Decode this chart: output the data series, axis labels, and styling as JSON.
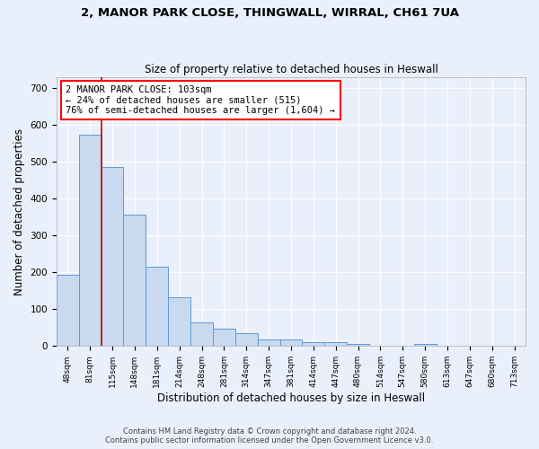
{
  "title_line1": "2, MANOR PARK CLOSE, THINGWALL, WIRRAL, CH61 7UA",
  "title_line2": "Size of property relative to detached houses in Heswall",
  "xlabel": "Distribution of detached houses by size in Heswall",
  "ylabel": "Number of detached properties",
  "categories": [
    "48sqm",
    "81sqm",
    "115sqm",
    "148sqm",
    "181sqm",
    "214sqm",
    "248sqm",
    "281sqm",
    "314sqm",
    "347sqm",
    "381sqm",
    "414sqm",
    "447sqm",
    "480sqm",
    "514sqm",
    "547sqm",
    "580sqm",
    "613sqm",
    "647sqm",
    "680sqm",
    "713sqm"
  ],
  "values": [
    193,
    575,
    487,
    357,
    216,
    133,
    65,
    48,
    36,
    18,
    18,
    11,
    10,
    6,
    0,
    0,
    6,
    0,
    0,
    0,
    0
  ],
  "bar_color": "#c9d9f0",
  "bar_edge_color": "#5b9bd5",
  "red_line_x": 1.5,
  "annotation_text": "2 MANOR PARK CLOSE: 103sqm\n← 24% of detached houses are smaller (515)\n76% of semi-detached houses are larger (1,604) →",
  "annotation_box_color": "white",
  "annotation_box_edge_color": "red",
  "red_line_color": "#cc0000",
  "ylim": [
    0,
    730
  ],
  "yticks": [
    0,
    100,
    200,
    300,
    400,
    500,
    600,
    700
  ],
  "footer_line1": "Contains HM Land Registry data © Crown copyright and database right 2024.",
  "footer_line2": "Contains public sector information licensed under the Open Government Licence v3.0.",
  "bg_color": "#eaf0fb",
  "grid_color": "#ffffff",
  "bar_width": 1.0
}
